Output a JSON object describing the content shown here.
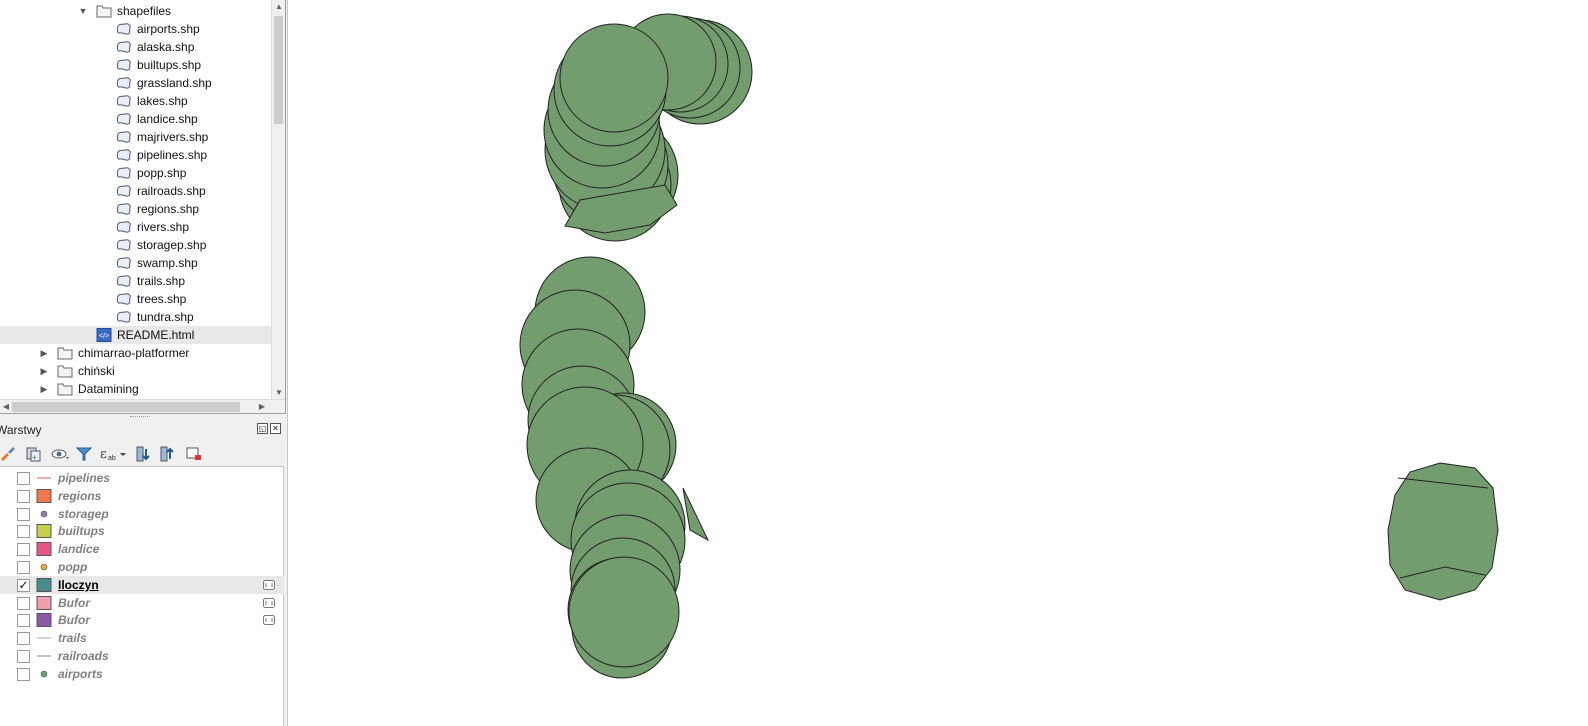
{
  "browser": {
    "tree": [
      {
        "label": "shapefiles",
        "icon": "folder-icon",
        "expanded": true
      },
      {
        "label": "airports.shp",
        "icon": "polygon-layer-icon"
      },
      {
        "label": "alaska.shp",
        "icon": "polygon-layer-icon"
      },
      {
        "label": "builtups.shp",
        "icon": "polygon-layer-icon"
      },
      {
        "label": "grassland.shp",
        "icon": "polygon-layer-icon"
      },
      {
        "label": "lakes.shp",
        "icon": "polygon-layer-icon"
      },
      {
        "label": "landice.shp",
        "icon": "polygon-layer-icon"
      },
      {
        "label": "majrivers.shp",
        "icon": "polygon-layer-icon"
      },
      {
        "label": "pipelines.shp",
        "icon": "polygon-layer-icon"
      },
      {
        "label": "popp.shp",
        "icon": "polygon-layer-icon"
      },
      {
        "label": "railroads.shp",
        "icon": "polygon-layer-icon"
      },
      {
        "label": "regions.shp",
        "icon": "polygon-layer-icon"
      },
      {
        "label": "rivers.shp",
        "icon": "polygon-layer-icon"
      },
      {
        "label": "storagep.shp",
        "icon": "polygon-layer-icon"
      },
      {
        "label": "swamp.shp",
        "icon": "polygon-layer-icon"
      },
      {
        "label": "trails.shp",
        "icon": "polygon-layer-icon"
      },
      {
        "label": "trees.shp",
        "icon": "polygon-layer-icon"
      },
      {
        "label": "tundra.shp",
        "icon": "polygon-layer-icon"
      },
      {
        "label": "README.html",
        "icon": "html-file-icon",
        "selected": true
      },
      {
        "label": "chimarrao-platformer",
        "icon": "folder-icon",
        "expanded": false
      },
      {
        "label": "chiński",
        "icon": "folder-icon",
        "expanded": false
      },
      {
        "label": "Datamining",
        "icon": "folder-icon",
        "expanded": false
      }
    ]
  },
  "layers_panel": {
    "title": "Warstwy",
    "toolbar": [
      "paint-brush-icon",
      "add-group-icon",
      "eye-icon",
      "filter-icon",
      "expression-icon",
      "expand-all-icon",
      "collapse-all-icon",
      "remove-layer-icon"
    ],
    "layers": [
      {
        "name": "pipelines",
        "checked": false,
        "symbol": "line",
        "color": "#e8948a"
      },
      {
        "name": "regions",
        "checked": false,
        "symbol": "fill",
        "color": "#ee7a4c"
      },
      {
        "name": "storagep",
        "checked": false,
        "symbol": "point",
        "color": "#9a7ab5"
      },
      {
        "name": "builtups",
        "checked": false,
        "symbol": "fill",
        "color": "#c4d04a"
      },
      {
        "name": "landice",
        "checked": false,
        "symbol": "fill",
        "color": "#e8558a"
      },
      {
        "name": "popp",
        "checked": false,
        "symbol": "point",
        "color": "#e0b040"
      },
      {
        "name": "Iloczyn",
        "checked": true,
        "symbol": "fill",
        "color": "#4a8c8c",
        "active": true,
        "filter": true
      },
      {
        "name": "Bufor",
        "checked": false,
        "symbol": "fill",
        "color": "#f0a0b0",
        "filter": true
      },
      {
        "name": "Bufor",
        "checked": false,
        "symbol": "fill",
        "color": "#8a5aa8",
        "filter": true
      },
      {
        "name": "trails",
        "checked": false,
        "symbol": "line",
        "color": "#c8c8c8"
      },
      {
        "name": "railroads",
        "checked": false,
        "symbol": "line",
        "color": "#b0b0b0"
      },
      {
        "name": "airports",
        "checked": false,
        "symbol": "point",
        "color": "#6aa86a"
      }
    ]
  },
  "map": {
    "fill_color": "#739d6e",
    "stroke_color": "#232323"
  }
}
